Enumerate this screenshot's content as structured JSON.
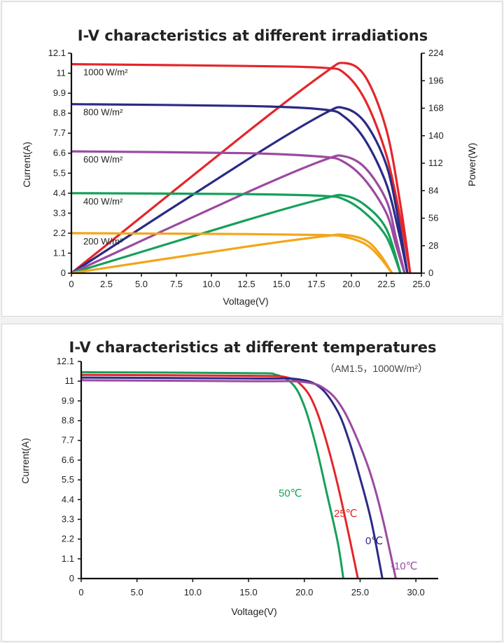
{
  "chart_data": [
    {
      "type": "line",
      "title": "I-V characteristics at different irradiations",
      "xlabel": "Voltage(V)",
      "ylabel": "Current(A)",
      "y2label": "Power(W)",
      "xlim": [
        0,
        25
      ],
      "ylim": [
        0,
        12.1
      ],
      "y2lim": [
        0,
        224
      ],
      "xticks": [
        "0",
        "2.5",
        "5.0",
        "7.5",
        "10.0",
        "12.5",
        "15.0",
        "17.5",
        "20.0",
        "22.5",
        "25.0"
      ],
      "yticks": [
        "0",
        "1.1",
        "2.2",
        "3.3",
        "4.4",
        "5.5",
        "6.6",
        "7.7",
        "8.8",
        "9.9",
        "11",
        "12.1"
      ],
      "y2ticks": [
        "0",
        "28",
        "56",
        "84",
        "112",
        "140",
        "168",
        "196",
        "224"
      ],
      "grid": false,
      "series": [
        {
          "name": "1000 W/m²",
          "color": "#e3262b",
          "isc": 11.5,
          "voc": 24.2,
          "current": [
            [
              0,
              11.5
            ],
            [
              12.5,
              11.4
            ],
            [
              18.0,
              11.3
            ],
            [
              19.5,
              11.0
            ],
            [
              21.0,
              9.5
            ],
            [
              22.5,
              6.5
            ],
            [
              23.5,
              3.0
            ],
            [
              24.2,
              0
            ]
          ],
          "power": [
            [
              0,
              0
            ],
            [
              12.5,
              143
            ],
            [
              18.0,
              203
            ],
            [
              19.5,
              214
            ],
            [
              21.0,
              200
            ],
            [
              22.5,
              146
            ],
            [
              23.5,
              70
            ],
            [
              24.2,
              0
            ]
          ]
        },
        {
          "name": "800 W/m²",
          "color": "#2b2a86",
          "isc": 9.3,
          "voc": 24.0,
          "current": [
            [
              0,
              9.3
            ],
            [
              12.5,
              9.2
            ],
            [
              18.0,
              9.0
            ],
            [
              19.5,
              8.6
            ],
            [
              21.0,
              7.3
            ],
            [
              22.5,
              4.9
            ],
            [
              23.4,
              2.2
            ],
            [
              24.0,
              0
            ]
          ],
          "power": [
            [
              0,
              0
            ],
            [
              12.5,
              115
            ],
            [
              18.0,
              162
            ],
            [
              19.5,
              168
            ],
            [
              21.0,
              153
            ],
            [
              22.5,
              110
            ],
            [
              23.4,
              51
            ],
            [
              24.0,
              0
            ]
          ]
        },
        {
          "name": "600 W/m²",
          "color": "#9b4aa0",
          "isc": 6.7,
          "voc": 23.8,
          "current": [
            [
              0,
              6.7
            ],
            [
              12.5,
              6.6
            ],
            [
              18.0,
              6.4
            ],
            [
              19.5,
              6.1
            ],
            [
              21.0,
              5.1
            ],
            [
              22.5,
              3.3
            ],
            [
              23.2,
              1.5
            ],
            [
              23.8,
              0
            ]
          ],
          "power": [
            [
              0,
              0
            ],
            [
              12.5,
              82
            ],
            [
              18.0,
              115
            ],
            [
              19.5,
              119
            ],
            [
              21.0,
              107
            ],
            [
              22.5,
              74
            ],
            [
              23.2,
              35
            ],
            [
              23.8,
              0
            ]
          ]
        },
        {
          "name": "400 W/m²",
          "color": "#16a05a",
          "isc": 4.4,
          "voc": 23.5,
          "current": [
            [
              0,
              4.4
            ],
            [
              12.5,
              4.35
            ],
            [
              18.0,
              4.25
            ],
            [
              19.5,
              4.05
            ],
            [
              21.0,
              3.3
            ],
            [
              22.5,
              2.0
            ],
            [
              23.5,
              0
            ]
          ],
          "power": [
            [
              0,
              0
            ],
            [
              12.5,
              54
            ],
            [
              18.0,
              76
            ],
            [
              19.5,
              79
            ],
            [
              21.0,
              69
            ],
            [
              22.5,
              45
            ],
            [
              23.5,
              0
            ]
          ]
        },
        {
          "name": "200 W/m²",
          "color": "#f3a519",
          "isc": 2.2,
          "voc": 22.9,
          "current": [
            [
              0,
              2.2
            ],
            [
              12.5,
              2.15
            ],
            [
              18.0,
              2.1
            ],
            [
              19.5,
              2.0
            ],
            [
              21.0,
              1.6
            ],
            [
              22.0,
              0.9
            ],
            [
              22.9,
              0
            ]
          ],
          "power": [
            [
              0,
              0
            ],
            [
              12.5,
              27
            ],
            [
              18.0,
              37.5
            ],
            [
              19.5,
              39
            ],
            [
              21.0,
              33.5
            ],
            [
              22.0,
              20
            ],
            [
              22.9,
              0
            ]
          ]
        }
      ]
    },
    {
      "type": "line",
      "title": "I-V characteristics at different temperatures",
      "subtitle": "（AM1.5，1000W/m²）",
      "xlabel": "Voltage(V)",
      "ylabel": "Current(A)",
      "xlim": [
        0,
        32
      ],
      "ylim": [
        0,
        12.1
      ],
      "xticks": [
        "0",
        "5.0",
        "10.0",
        "15.0",
        "20.0",
        "25.0",
        "30.0"
      ],
      "yticks": [
        "0",
        "1.1",
        "2.2",
        "3.3",
        "4.4",
        "5.5",
        "6.6",
        "7.7",
        "8.8",
        "9.9",
        "11",
        "12.1"
      ],
      "grid": false,
      "series": [
        {
          "name": "50℃",
          "color": "#16a05a",
          "current": [
            [
              0,
              11.5
            ],
            [
              15.0,
              11.45
            ],
            [
              17.5,
              11.35
            ],
            [
              19.0,
              10.8
            ],
            [
              20.0,
              9.6
            ],
            [
              21.0,
              7.5
            ],
            [
              22.0,
              4.8
            ],
            [
              23.0,
              2.0
            ],
            [
              23.5,
              0
            ]
          ]
        },
        {
          "name": "25℃",
          "color": "#e3262b",
          "current": [
            [
              0,
              11.35
            ],
            [
              15.0,
              11.3
            ],
            [
              18.5,
              11.2
            ],
            [
              20.0,
              10.6
            ],
            [
              21.0,
              9.5
            ],
            [
              22.0,
              7.6
            ],
            [
              23.0,
              5.2
            ],
            [
              24.0,
              2.4
            ],
            [
              24.8,
              0
            ]
          ]
        },
        {
          "name": "0℃",
          "color": "#2b2a86",
          "current": [
            [
              0,
              11.2
            ],
            [
              15.0,
              11.15
            ],
            [
              19.5,
              11.1
            ],
            [
              21.5,
              10.6
            ],
            [
              23.0,
              9.3
            ],
            [
              24.0,
              7.7
            ],
            [
              25.0,
              5.6
            ],
            [
              26.0,
              3.2
            ],
            [
              27.0,
              0
            ]
          ]
        },
        {
          "name": "-10℃",
          "color": "#9b4aa0",
          "current": [
            [
              0,
              11.05
            ],
            [
              15.0,
              11.0
            ],
            [
              20.0,
              10.95
            ],
            [
              22.0,
              10.5
            ],
            [
              23.5,
              9.4
            ],
            [
              25.0,
              7.4
            ],
            [
              26.0,
              5.7
            ],
            [
              27.0,
              3.4
            ],
            [
              28.2,
              0
            ]
          ]
        }
      ]
    }
  ]
}
